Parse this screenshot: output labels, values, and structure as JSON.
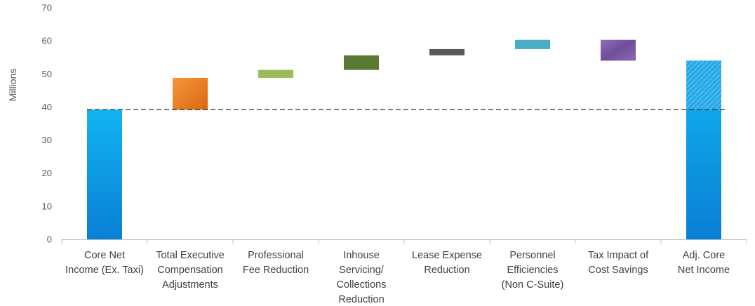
{
  "chart_data": {
    "type": "bar",
    "subtype": "waterfall",
    "ylabel": "Millions",
    "ylim": [
      0,
      70
    ],
    "yticks": [
      0,
      10,
      20,
      30,
      40,
      50,
      60,
      70
    ],
    "grid": false,
    "legend": "none",
    "reference_line": {
      "value": 39.2,
      "style": "dashed"
    },
    "categories": [
      [
        "Core Net",
        "Income (Ex. Taxi)"
      ],
      [
        "Total Executive",
        "Compensation",
        "Adjustments"
      ],
      [
        "Professional",
        "Fee Reduction"
      ],
      [
        "Inhouse",
        "Servicing/",
        "Collections",
        "Reduction"
      ],
      [
        "Lease Expense",
        "Reduction"
      ],
      [
        "Personnel",
        "Efficiencies",
        "(Non C-Suite)"
      ],
      [
        "Tax Impact of",
        "Cost Savings"
      ],
      [
        "Adj. Core",
        "Net Income"
      ]
    ],
    "bars": [
      {
        "kind": "total",
        "low": 0,
        "high": 39.2,
        "color": "#0ea1e6"
      },
      {
        "kind": "increase",
        "low": 39.2,
        "high": 48.8,
        "color": "#ed7d31"
      },
      {
        "kind": "increase",
        "low": 48.8,
        "high": 51.2,
        "color": "#9bbb59"
      },
      {
        "kind": "increase",
        "low": 51.2,
        "high": 55.6,
        "color": "#5a7a34"
      },
      {
        "kind": "increase",
        "low": 55.6,
        "high": 57.5,
        "color": "#595959"
      },
      {
        "kind": "increase",
        "low": 57.5,
        "high": 60.3,
        "color": "#4bacc6"
      },
      {
        "kind": "decrease",
        "low": 54.0,
        "high": 60.3,
        "color": "#7b5aa6"
      },
      {
        "kind": "total",
        "low": 0,
        "high": 54.0,
        "color": "#0ea1e6",
        "hatched_from": 39.2
      }
    ]
  }
}
